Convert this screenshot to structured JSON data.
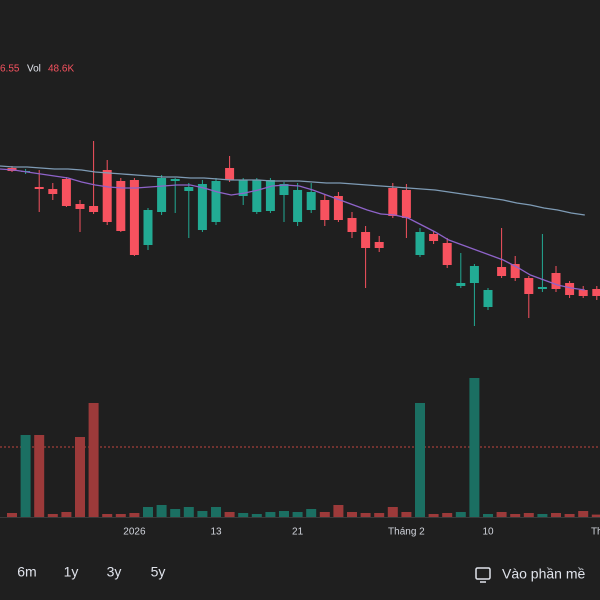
{
  "chart_data": {
    "type": "candlestick",
    "header": {
      "price_fragment": "6.55",
      "vol_label": "Vol",
      "vol_value": "48.6K"
    },
    "categories": [
      null,
      null,
      null,
      null,
      null,
      null,
      null,
      null,
      null,
      "2026",
      null,
      null,
      null,
      null,
      null,
      "13",
      null,
      null,
      null,
      null,
      null,
      "21",
      null,
      null,
      null,
      null,
      null,
      null,
      null,
      "Tháng 2",
      null,
      null,
      null,
      null,
      null,
      "10",
      null,
      null,
      null,
      null,
      null,
      null,
      null,
      "Th"
    ],
    "open": [
      43.2,
      42.9,
      41.3,
      41.1,
      42.1,
      39.6,
      39.4,
      43.0,
      41.9,
      42.0,
      35.5,
      38.8,
      41.9,
      40.9,
      37.0,
      37.8,
      43.2,
      40.4,
      38.8,
      38.9,
      40.5,
      37.8,
      39.0,
      40.0,
      40.4,
      38.2,
      36.8,
      35.8,
      41.2,
      41.0,
      34.5,
      36.6,
      35.7,
      31.4,
      31.7,
      29.3,
      33.3,
      33.6,
      32.2,
      31.1,
      32.7,
      31.7,
      31.0,
      31.1
    ],
    "high": [
      43.4,
      43.1,
      43.0,
      41.7,
      42.3,
      40.0,
      45.9,
      44.0,
      42.2,
      42.2,
      39.2,
      42.5,
      42.2,
      41.7,
      42.0,
      42.2,
      44.4,
      42.2,
      42.2,
      42.2,
      41.8,
      41.7,
      41.7,
      40.5,
      40.8,
      38.8,
      37.4,
      36.4,
      41.7,
      41.6,
      37.2,
      36.9,
      36.2,
      34.7,
      33.6,
      31.2,
      37.2,
      34.4,
      32.4,
      36.6,
      33.4,
      31.9,
      31.4,
      31.4
    ],
    "low": [
      42.8,
      42.6,
      38.8,
      40.0,
      39.3,
      36.8,
      38.6,
      37.5,
      36.8,
      34.4,
      35.0,
      38.5,
      38.7,
      36.2,
      36.8,
      37.5,
      41.8,
      39.5,
      38.6,
      38.7,
      37.8,
      37.4,
      38.7,
      37.4,
      37.8,
      36.2,
      31.2,
      34.8,
      38.2,
      36.2,
      34.3,
      35.6,
      33.2,
      31.2,
      27.4,
      29.0,
      32.2,
      31.9,
      28.2,
      30.8,
      30.8,
      30.2,
      30.2,
      30.0
    ],
    "close": [
      42.9,
      42.9,
      41.1,
      40.6,
      39.4,
      39.1,
      38.8,
      37.8,
      36.9,
      34.5,
      39.0,
      42.2,
      42.1,
      41.3,
      41.6,
      41.9,
      42.0,
      42.0,
      42.0,
      42.0,
      41.6,
      41.0,
      40.8,
      38.0,
      38.0,
      36.8,
      35.2,
      35.2,
      38.4,
      38.2,
      36.8,
      35.9,
      33.5,
      31.7,
      33.4,
      31.0,
      32.4,
      32.2,
      30.6,
      31.3,
      31.1,
      30.5,
      30.4,
      30.4
    ],
    "ma_series": [
      {
        "color": "#7e9bb5",
        "values": [
          43.4,
          43.3,
          43.3,
          43.2,
          43.1,
          43.1,
          43.0,
          42.8,
          42.7,
          42.6,
          42.5,
          42.4,
          42.3,
          42.3,
          42.2,
          42.2,
          42.1,
          42.0,
          42.0,
          42.0,
          41.9,
          41.9,
          41.9,
          41.8,
          41.7,
          41.7,
          41.6,
          41.5,
          41.4,
          41.3,
          41.2,
          41.1,
          41.0,
          40.8,
          40.6,
          40.4,
          40.2,
          40.0,
          39.7,
          39.5,
          39.2,
          39.0,
          38.7,
          38.5
        ]
      },
      {
        "color": "#8e63c9",
        "values": [
          43.1,
          43.0,
          42.8,
          42.6,
          42.4,
          42.2,
          41.8,
          41.5,
          41.3,
          41.2,
          41.2,
          41.3,
          41.4,
          41.5,
          41.5,
          41.2,
          40.8,
          40.5,
          40.7,
          41.0,
          41.4,
          41.5,
          41.4,
          41.0,
          40.5,
          40.0,
          39.5,
          39.0,
          38.6,
          38.5,
          38.2,
          37.5,
          36.8,
          36.0,
          35.5,
          35.0,
          34.5,
          34.0,
          33.3,
          32.5,
          32.0,
          31.5,
          31.2,
          31.0
        ]
      }
    ],
    "volume": [
      80,
      1640,
      1640,
      60,
      100,
      1600,
      2280,
      60,
      60,
      80,
      200,
      240,
      160,
      200,
      120,
      200,
      100,
      80,
      60,
      100,
      120,
      100,
      160,
      100,
      240,
      100,
      80,
      80,
      200,
      100,
      2280,
      60,
      80,
      100,
      2780,
      60,
      100,
      60,
      80,
      60,
      80,
      60,
      120,
      48.6
    ],
    "volume_avg": 1400,
    "ylim": [
      26,
      50
    ],
    "volume_lim": [
      0,
      3000
    ],
    "up_color": "#22ab94",
    "down_color": "#f7525f",
    "volume_up_color": "#1b6f62",
    "volume_down_color": "#9c3a3a"
  },
  "toolbar": {
    "ranges": [
      "6m",
      "1y",
      "3y",
      "5y"
    ],
    "action": "Vào phần mề"
  }
}
